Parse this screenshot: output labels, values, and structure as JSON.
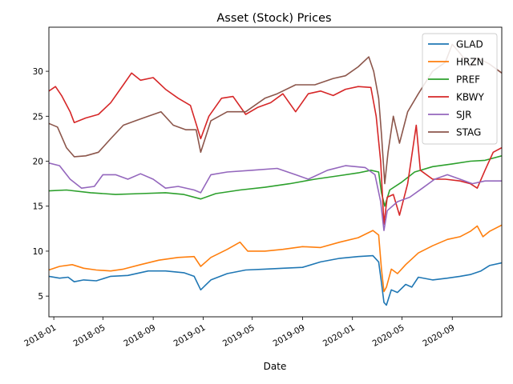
{
  "chart_data": {
    "type": "line",
    "title": "Asset (Stock) Prices",
    "xlabel": "Date",
    "ylabel": "",
    "xlim": [
      "2017-12-20",
      "2020-12-31"
    ],
    "ylim": [
      2.7,
      34.9
    ],
    "yticks": [
      5,
      10,
      15,
      20,
      25,
      30
    ],
    "xticks": [
      "2018-01",
      "2018-05",
      "2018-09",
      "2019-01",
      "2019-05",
      "2019-09",
      "2020-01",
      "2020-05",
      "2020-09"
    ],
    "grid": false,
    "legend_position": "top-right",
    "series": [
      {
        "name": "GLAD",
        "color": "#1f77b4",
        "points": [
          [
            "2017-12-20",
            7.2
          ],
          [
            "2018-01-15",
            7.0
          ],
          [
            "2018-02-05",
            7.1
          ],
          [
            "2018-02-20",
            6.6
          ],
          [
            "2018-03-15",
            6.8
          ],
          [
            "2018-04-15",
            6.7
          ],
          [
            "2018-05-20",
            7.2
          ],
          [
            "2018-07-01",
            7.3
          ],
          [
            "2018-08-20",
            7.8
          ],
          [
            "2018-10-01",
            7.8
          ],
          [
            "2018-11-15",
            7.6
          ],
          [
            "2018-12-10",
            7.2
          ],
          [
            "2018-12-26",
            5.7
          ],
          [
            "2019-01-20",
            6.8
          ],
          [
            "2019-03-01",
            7.5
          ],
          [
            "2019-04-15",
            7.9
          ],
          [
            "2019-06-01",
            8.0
          ],
          [
            "2019-07-15",
            8.1
          ],
          [
            "2019-09-01",
            8.2
          ],
          [
            "2019-10-15",
            8.8
          ],
          [
            "2019-12-01",
            9.2
          ],
          [
            "2020-01-15",
            9.4
          ],
          [
            "2020-02-20",
            9.5
          ],
          [
            "2020-03-05",
            8.8
          ],
          [
            "2020-03-12",
            6.5
          ],
          [
            "2020-03-18",
            4.3
          ],
          [
            "2020-03-24",
            4.0
          ],
          [
            "2020-04-05",
            5.7
          ],
          [
            "2020-04-20",
            5.4
          ],
          [
            "2020-05-10",
            6.3
          ],
          [
            "2020-05-25",
            6.0
          ],
          [
            "2020-06-10",
            7.1
          ],
          [
            "2020-07-15",
            6.8
          ],
          [
            "2020-08-20",
            7.0
          ],
          [
            "2020-09-20",
            7.2
          ],
          [
            "2020-10-15",
            7.4
          ],
          [
            "2020-11-10",
            7.8
          ],
          [
            "2020-12-01",
            8.4
          ],
          [
            "2020-12-31",
            8.7
          ]
        ]
      },
      {
        "name": "HRZN",
        "color": "#ff7f0e",
        "points": [
          [
            "2017-12-20",
            7.9
          ],
          [
            "2018-01-15",
            8.3
          ],
          [
            "2018-02-15",
            8.5
          ],
          [
            "2018-03-15",
            8.1
          ],
          [
            "2018-04-15",
            7.9
          ],
          [
            "2018-05-20",
            7.8
          ],
          [
            "2018-06-20",
            8.0
          ],
          [
            "2018-08-01",
            8.5
          ],
          [
            "2018-09-15",
            9.0
          ],
          [
            "2018-11-01",
            9.3
          ],
          [
            "2018-12-10",
            9.4
          ],
          [
            "2018-12-26",
            8.3
          ],
          [
            "2019-01-20",
            9.3
          ],
          [
            "2019-03-01",
            10.2
          ],
          [
            "2019-04-01",
            11.0
          ],
          [
            "2019-04-20",
            10.0
          ],
          [
            "2019-06-01",
            10.0
          ],
          [
            "2019-07-15",
            10.2
          ],
          [
            "2019-09-01",
            10.5
          ],
          [
            "2019-10-15",
            10.4
          ],
          [
            "2019-12-01",
            11.0
          ],
          [
            "2020-01-15",
            11.5
          ],
          [
            "2020-02-20",
            12.3
          ],
          [
            "2020-03-05",
            11.8
          ],
          [
            "2020-03-12",
            8.0
          ],
          [
            "2020-03-18",
            5.5
          ],
          [
            "2020-03-24",
            6.0
          ],
          [
            "2020-04-05",
            8.0
          ],
          [
            "2020-04-20",
            7.5
          ],
          [
            "2020-05-10",
            8.5
          ],
          [
            "2020-06-10",
            9.8
          ],
          [
            "2020-07-15",
            10.6
          ],
          [
            "2020-08-20",
            11.3
          ],
          [
            "2020-09-20",
            11.6
          ],
          [
            "2020-10-15",
            12.2
          ],
          [
            "2020-11-01",
            12.8
          ],
          [
            "2020-11-15",
            11.6
          ],
          [
            "2020-12-01",
            12.2
          ],
          [
            "2020-12-31",
            12.9
          ]
        ]
      },
      {
        "name": "PREF",
        "color": "#2ca02c",
        "points": [
          [
            "2017-12-20",
            16.7
          ],
          [
            "2018-02-01",
            16.8
          ],
          [
            "2018-04-01",
            16.5
          ],
          [
            "2018-06-01",
            16.3
          ],
          [
            "2018-08-01",
            16.4
          ],
          [
            "2018-10-01",
            16.5
          ],
          [
            "2018-11-15",
            16.3
          ],
          [
            "2018-12-26",
            15.8
          ],
          [
            "2019-02-01",
            16.4
          ],
          [
            "2019-04-01",
            16.8
          ],
          [
            "2019-06-01",
            17.1
          ],
          [
            "2019-08-01",
            17.5
          ],
          [
            "2019-10-01",
            18.0
          ],
          [
            "2019-12-01",
            18.4
          ],
          [
            "2020-01-15",
            18.7
          ],
          [
            "2020-02-15",
            19.0
          ],
          [
            "2020-03-05",
            18.8
          ],
          [
            "2020-03-12",
            16.5
          ],
          [
            "2020-03-20",
            15.0
          ],
          [
            "2020-04-01",
            16.8
          ],
          [
            "2020-05-01",
            17.7
          ],
          [
            "2020-06-01",
            18.8
          ],
          [
            "2020-07-15",
            19.4
          ],
          [
            "2020-09-01",
            19.7
          ],
          [
            "2020-10-15",
            20.0
          ],
          [
            "2020-11-20",
            20.1
          ],
          [
            "2020-12-31",
            20.6
          ]
        ]
      },
      {
        "name": "KBWY",
        "color": "#d62728",
        "points": [
          [
            "2017-12-20",
            27.8
          ],
          [
            "2018-01-05",
            28.3
          ],
          [
            "2018-01-20",
            27.3
          ],
          [
            "2018-02-10",
            25.5
          ],
          [
            "2018-02-20",
            24.3
          ],
          [
            "2018-03-20",
            24.8
          ],
          [
            "2018-04-20",
            25.2
          ],
          [
            "2018-05-20",
            26.5
          ],
          [
            "2018-06-20",
            28.5
          ],
          [
            "2018-07-10",
            29.8
          ],
          [
            "2018-08-01",
            29.0
          ],
          [
            "2018-09-01",
            29.3
          ],
          [
            "2018-10-01",
            28.0
          ],
          [
            "2018-11-01",
            27.0
          ],
          [
            "2018-12-01",
            26.2
          ],
          [
            "2018-12-26",
            22.5
          ],
          [
            "2019-01-15",
            25.0
          ],
          [
            "2019-02-15",
            27.0
          ],
          [
            "2019-03-15",
            27.2
          ],
          [
            "2019-04-15",
            25.2
          ],
          [
            "2019-05-15",
            26.0
          ],
          [
            "2019-06-15",
            26.5
          ],
          [
            "2019-07-15",
            27.5
          ],
          [
            "2019-08-15",
            25.5
          ],
          [
            "2019-09-15",
            27.5
          ],
          [
            "2019-10-15",
            27.8
          ],
          [
            "2019-11-15",
            27.3
          ],
          [
            "2019-12-15",
            28.0
          ],
          [
            "2020-01-15",
            28.3
          ],
          [
            "2020-02-15",
            28.2
          ],
          [
            "2020-02-28",
            25.0
          ],
          [
            "2020-03-10",
            20.0
          ],
          [
            "2020-03-18",
            13.0
          ],
          [
            "2020-03-26",
            16.0
          ],
          [
            "2020-04-10",
            16.3
          ],
          [
            "2020-04-25",
            14.0
          ],
          [
            "2020-05-15",
            17.5
          ],
          [
            "2020-06-05",
            24.0
          ],
          [
            "2020-06-15",
            19.0
          ],
          [
            "2020-07-15",
            18.0
          ],
          [
            "2020-08-15",
            18.0
          ],
          [
            "2020-09-20",
            17.8
          ],
          [
            "2020-10-15",
            17.5
          ],
          [
            "2020-11-01",
            17.0
          ],
          [
            "2020-11-20",
            19.0
          ],
          [
            "2020-12-10",
            21.0
          ],
          [
            "2020-12-31",
            21.5
          ]
        ]
      },
      {
        "name": "SJR",
        "color": "#9467bd",
        "points": [
          [
            "2017-12-20",
            19.8
          ],
          [
            "2018-01-15",
            19.5
          ],
          [
            "2018-02-10",
            18.0
          ],
          [
            "2018-03-10",
            17.0
          ],
          [
            "2018-04-10",
            17.2
          ],
          [
            "2018-05-01",
            18.5
          ],
          [
            "2018-06-01",
            18.5
          ],
          [
            "2018-07-01",
            18.0
          ],
          [
            "2018-08-01",
            18.6
          ],
          [
            "2018-09-01",
            18.0
          ],
          [
            "2018-10-01",
            17.0
          ],
          [
            "2018-11-01",
            17.2
          ],
          [
            "2018-12-10",
            16.8
          ],
          [
            "2018-12-26",
            16.5
          ],
          [
            "2019-01-20",
            18.5
          ],
          [
            "2019-03-01",
            18.8
          ],
          [
            "2019-05-01",
            19.0
          ],
          [
            "2019-07-01",
            19.2
          ],
          [
            "2019-08-15",
            18.5
          ],
          [
            "2019-09-15",
            18.0
          ],
          [
            "2019-11-01",
            19.0
          ],
          [
            "2019-12-15",
            19.5
          ],
          [
            "2020-02-01",
            19.3
          ],
          [
            "2020-02-25",
            18.5
          ],
          [
            "2020-03-10",
            15.5
          ],
          [
            "2020-03-18",
            12.3
          ],
          [
            "2020-03-26",
            14.5
          ],
          [
            "2020-04-20",
            15.5
          ],
          [
            "2020-05-20",
            16.0
          ],
          [
            "2020-06-20",
            17.0
          ],
          [
            "2020-07-20",
            18.0
          ],
          [
            "2020-08-20",
            18.5
          ],
          [
            "2020-09-20",
            18.0
          ],
          [
            "2020-10-20",
            17.5
          ],
          [
            "2020-11-20",
            17.8
          ],
          [
            "2020-12-31",
            17.8
          ]
        ]
      },
      {
        "name": "STAG",
        "color": "#8c564b",
        "points": [
          [
            "2017-12-20",
            24.2
          ],
          [
            "2018-01-10",
            23.8
          ],
          [
            "2018-02-01",
            21.5
          ],
          [
            "2018-02-20",
            20.5
          ],
          [
            "2018-03-20",
            20.6
          ],
          [
            "2018-04-20",
            21.0
          ],
          [
            "2018-05-20",
            22.5
          ],
          [
            "2018-06-20",
            24.0
          ],
          [
            "2018-07-20",
            24.5
          ],
          [
            "2018-08-20",
            25.0
          ],
          [
            "2018-09-20",
            25.5
          ],
          [
            "2018-10-20",
            24.0
          ],
          [
            "2018-11-20",
            23.5
          ],
          [
            "2018-12-15",
            23.5
          ],
          [
            "2018-12-26",
            21.0
          ],
          [
            "2019-01-20",
            24.5
          ],
          [
            "2019-03-01",
            25.5
          ],
          [
            "2019-04-15",
            25.5
          ],
          [
            "2019-06-01",
            27.0
          ],
          [
            "2019-07-01",
            27.5
          ],
          [
            "2019-08-15",
            28.5
          ],
          [
            "2019-10-01",
            28.5
          ],
          [
            "2019-11-15",
            29.2
          ],
          [
            "2019-12-15",
            29.5
          ],
          [
            "2020-01-15",
            30.5
          ],
          [
            "2020-02-10",
            31.6
          ],
          [
            "2020-02-22",
            30.0
          ],
          [
            "2020-03-05",
            27.0
          ],
          [
            "2020-03-12",
            23.0
          ],
          [
            "2020-03-20",
            17.5
          ],
          [
            "2020-03-28",
            21.0
          ],
          [
            "2020-04-10",
            25.0
          ],
          [
            "2020-04-25",
            22.0
          ],
          [
            "2020-05-15",
            25.5
          ],
          [
            "2020-06-10",
            27.5
          ],
          [
            "2020-07-15",
            30.0
          ],
          [
            "2020-08-15",
            31.0
          ],
          [
            "2020-09-01",
            33.0
          ],
          [
            "2020-09-20",
            32.0
          ],
          [
            "2020-10-15",
            30.5
          ],
          [
            "2020-11-01",
            31.5
          ],
          [
            "2020-12-01",
            30.8
          ],
          [
            "2020-12-31",
            29.8
          ]
        ]
      }
    ]
  }
}
